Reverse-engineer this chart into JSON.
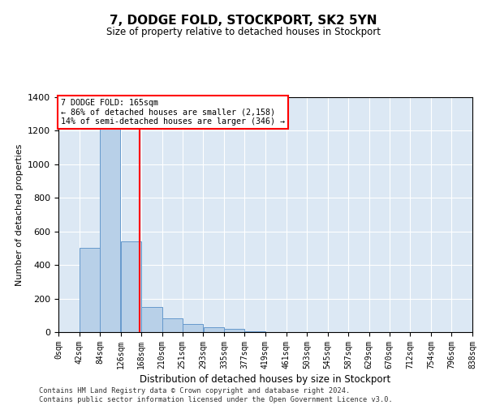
{
  "title": "7, DODGE FOLD, STOCKPORT, SK2 5YN",
  "subtitle": "Size of property relative to detached houses in Stockport",
  "xlabel": "Distribution of detached houses by size in Stockport",
  "ylabel": "Number of detached properties",
  "bar_color": "#b8d0e8",
  "bar_edge_color": "#6699cc",
  "background_color": "#dce8f4",
  "grid_color": "#ffffff",
  "vline_x": 165,
  "vline_color": "red",
  "bin_edges": [
    0,
    42,
    84,
    126,
    168,
    210,
    251,
    293,
    335,
    377,
    419,
    461,
    503,
    545,
    587,
    629,
    670,
    712,
    754,
    796,
    838
  ],
  "bin_labels": [
    "0sqm",
    "42sqm",
    "84sqm",
    "126sqm",
    "168sqm",
    "210sqm",
    "251sqm",
    "293sqm",
    "335sqm",
    "377sqm",
    "419sqm",
    "461sqm",
    "503sqm",
    "545sqm",
    "587sqm",
    "629sqm",
    "670sqm",
    "712sqm",
    "754sqm",
    "796sqm",
    "838sqm"
  ],
  "bar_heights": [
    0,
    500,
    1240,
    540,
    150,
    80,
    50,
    30,
    20,
    5,
    0,
    0,
    0,
    0,
    0,
    0,
    0,
    0,
    0,
    0
  ],
  "ylim": [
    0,
    1400
  ],
  "yticks": [
    0,
    200,
    400,
    600,
    800,
    1000,
    1200,
    1400
  ],
  "annotation_text": "7 DODGE FOLD: 165sqm\n← 86% of detached houses are smaller (2,158)\n14% of semi-detached houses are larger (346) →",
  "annotation_box_color": "white",
  "annotation_border_color": "red",
  "footer_line1": "Contains HM Land Registry data © Crown copyright and database right 2024.",
  "footer_line2": "Contains public sector information licensed under the Open Government Licence v3.0."
}
